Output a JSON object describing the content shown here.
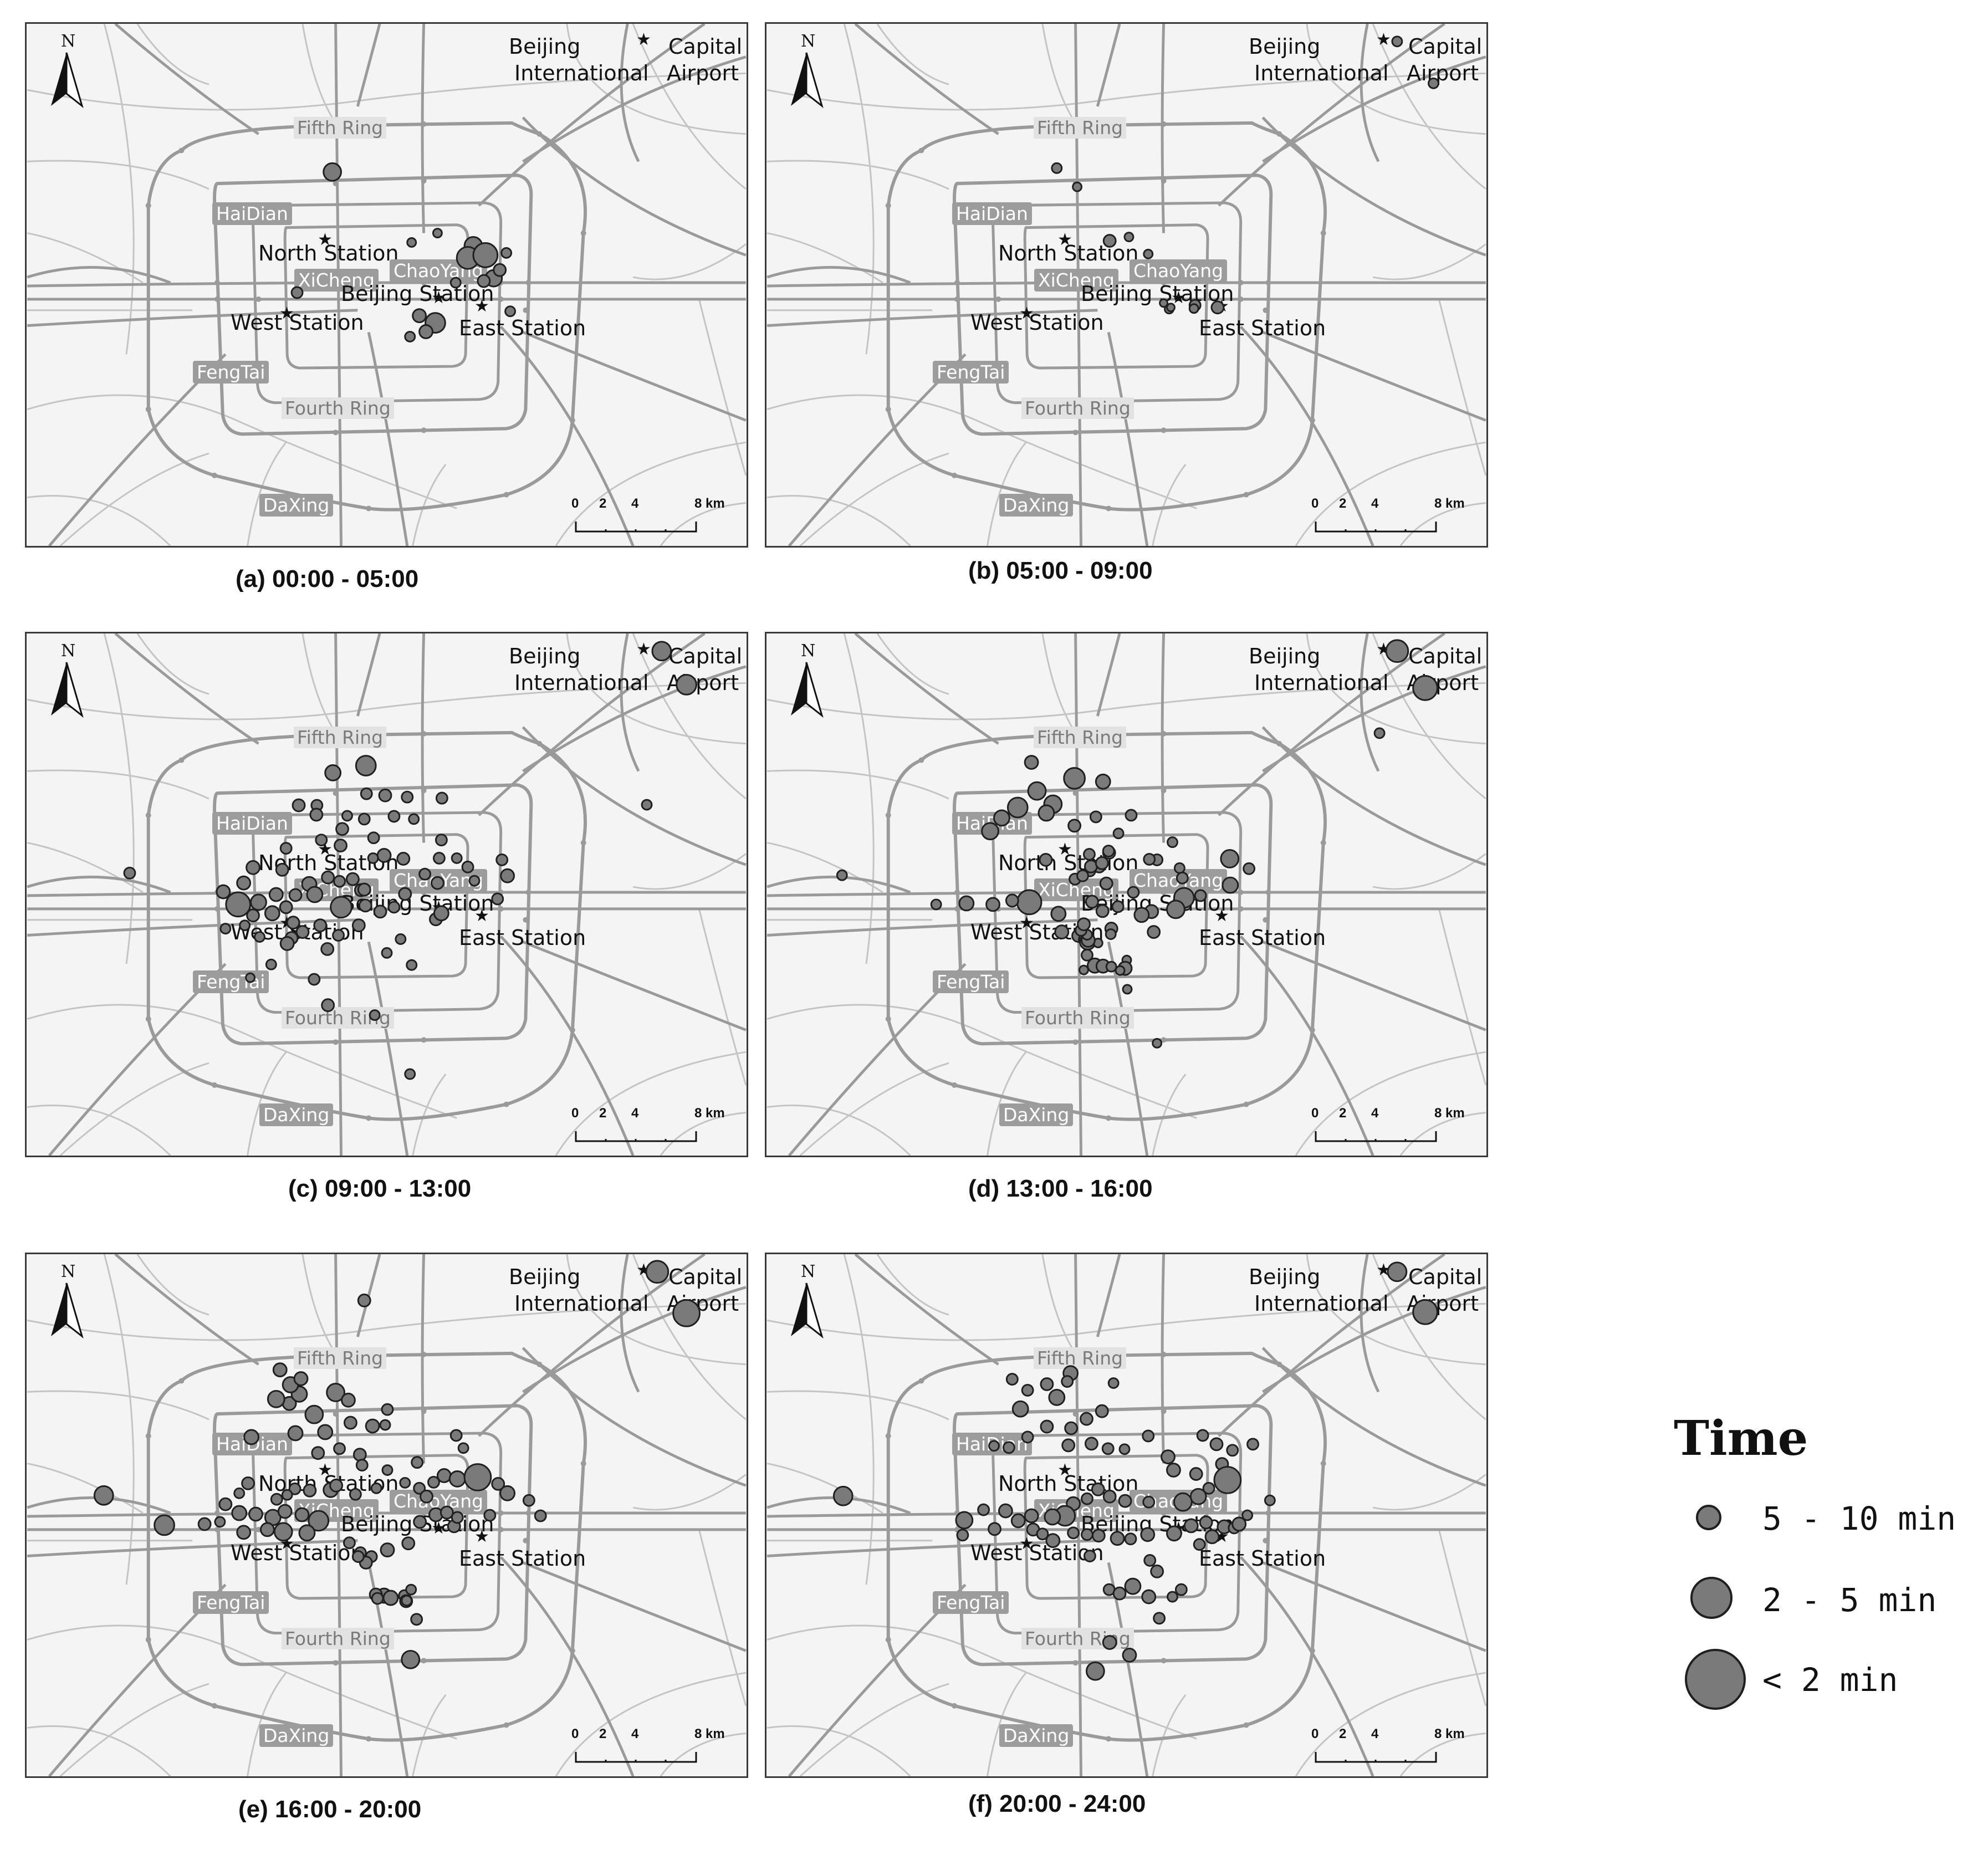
{
  "labels": {
    "capital": "Capital",
    "beijing": "Beijing",
    "international": "International",
    "airport": "Airport",
    "fifth_ring": "Fifth Ring",
    "fourth_ring": "Fourth Ring",
    "haidian": "HaiDian",
    "xicheng": "XiCheng",
    "chaoyang": "ChaoYang",
    "fengtai": "FengTai",
    "daxing": "DaXing",
    "north_station": "North Station",
    "beijing_station": "Beijing Station",
    "west_station": "West Station",
    "east_station": "East Station",
    "north_arrow": "N",
    "scale": [
      "0",
      "2",
      "4",
      "8 km"
    ]
  },
  "panels": [
    {
      "caption": "(a) 00:00 - 05:00",
      "points": []
    },
    {
      "caption": "(b) 05:00 - 09:00",
      "points": []
    },
    {
      "caption": "(c) 09:00 - 13:00",
      "points": []
    },
    {
      "caption": "(d) 13:00 - 16:00",
      "points": []
    },
    {
      "caption": "(e) 16:00 - 20:00",
      "points": []
    },
    {
      "caption": "(f) 20:00 - 24:00",
      "points": []
    }
  ],
  "legend": {
    "title": "Time",
    "items": [
      {
        "label": "5 - 10 min",
        "size_class": "small"
      },
      {
        "label": "2 - 5 min",
        "size_class": "medium"
      },
      {
        "label": "< 2 min",
        "size_class": "large"
      }
    ]
  },
  "colors": {
    "marker_fill": "#7a7a7a",
    "marker_stroke": "#1f1f1f",
    "road": "#9a9a9a",
    "district_bg": "#9c9c9c"
  }
}
